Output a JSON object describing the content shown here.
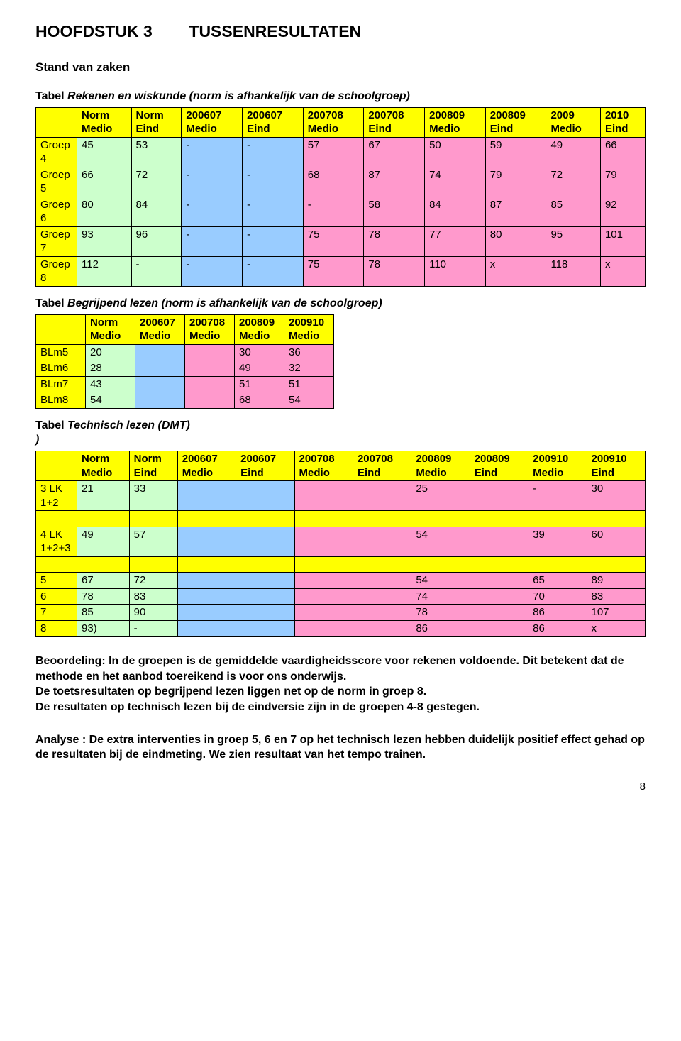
{
  "colors": {
    "header_row_bg": "#ffff00",
    "green_bg": "#ccffcc",
    "blue_bg": "#99ccff",
    "pink_bg": "#ff99cc",
    "border": "#000000",
    "text": "#000000",
    "page_bg": "#ffffff"
  },
  "heading": {
    "chapter": "HOOFDSTUK 3",
    "title": "TUSSENRESULTATEN"
  },
  "subtitle": "Stand van zaken",
  "table1": {
    "title_plain": "Tabel ",
    "title_italic": "Rekenen en wiskunde (norm is afhankelijk van de schoolgroep)",
    "headers": [
      "",
      "Norm Medio",
      "Norm Eind",
      "200607 Medio",
      "200607 Eind",
      "200708 Medio",
      "200708 Eind",
      "200809 Medio",
      "200809 Eind",
      "2009 Medio",
      "2010 Eind"
    ],
    "rows": [
      {
        "label": "Groep 4",
        "cells": [
          "45",
          "53",
          "-",
          "-",
          "57",
          "67",
          "50",
          "59",
          "49",
          "66"
        ]
      },
      {
        "label": "Groep 5",
        "cells": [
          "66",
          "72",
          "-",
          "-",
          "68",
          "87",
          "74",
          "79",
          "72",
          "79"
        ]
      },
      {
        "label": "Groep 6",
        "cells": [
          "80",
          "84",
          "-",
          "-",
          "-",
          "58",
          "84",
          "87",
          "85",
          "92"
        ]
      },
      {
        "label": "Groep 7",
        "cells": [
          " 93",
          "96",
          "-",
          "-",
          "75",
          "78",
          "77",
          "80",
          "95",
          "101"
        ]
      },
      {
        "label": "Groep 8",
        "cells": [
          "112",
          "-",
          "-",
          "-",
          "75",
          "78",
          "110",
          "x",
          "118",
          "x"
        ]
      }
    ],
    "color_classes": [
      "green",
      "green",
      "blue",
      "blue",
      "pink",
      "pink",
      "pink",
      "pink",
      "pink",
      "pink"
    ]
  },
  "table2": {
    "title_plain": "Tabel ",
    "title_italic": "Begrijpend lezen (norm is afhankelijk van de schoolgroep)",
    "headers": [
      "",
      "Norm Medio",
      "200607 Medio",
      "200708 Medio",
      "200809 Medio",
      "200910 Medio"
    ],
    "rows": [
      {
        "label": "BLm5",
        "cells": [
          "20",
          "",
          "",
          "30",
          "36"
        ]
      },
      {
        "label": "BLm6",
        "cells": [
          "28",
          "",
          "",
          "49",
          "32"
        ]
      },
      {
        "label": "BLm7",
        "cells": [
          "43",
          "",
          "",
          "51",
          "51"
        ]
      },
      {
        "label": "BLm8",
        "cells": [
          "54",
          "",
          "",
          "68",
          "54"
        ]
      }
    ],
    "color_classes": [
      "green",
      "blue",
      "pink",
      "pink",
      "pink"
    ]
  },
  "table3": {
    "title_plain": "Tabel ",
    "title_italic": "Technisch lezen (DMT)",
    "title_tail": ")",
    "headers": [
      "",
      "Norm Medio",
      "Norm Eind",
      "200607 Medio",
      "200607 Eind",
      "200708 Medio",
      "200708 Eind",
      "200809 Medio",
      "200809 Eind",
      "200910 Medio",
      "200910 Eind"
    ],
    "rows": [
      {
        "label": "3 LK 1+2",
        "cells": [
          "21",
          "33",
          "",
          "",
          "",
          "",
          "25",
          "",
          "-",
          "30"
        ]
      },
      {
        "label": "",
        "cells": [
          "",
          "",
          "",
          "",
          "",
          "",
          "",
          "",
          "",
          ""
        ],
        "blank": true
      },
      {
        "label": "4 LK 1+2+3",
        "cells": [
          "49",
          "57",
          "",
          "",
          "",
          "",
          "54",
          "",
          "39",
          "60"
        ]
      },
      {
        "label": "",
        "cells": [
          "",
          "",
          "",
          "",
          "",
          "",
          "",
          "",
          "",
          ""
        ],
        "blank": true
      },
      {
        "label": "5",
        "cells": [
          "67",
          "72",
          "",
          "",
          "",
          "",
          "54",
          "",
          "65",
          "89"
        ]
      },
      {
        "label": "6",
        "cells": [
          "78",
          "83",
          "",
          "",
          "",
          "",
          "74",
          "",
          "70",
          "83"
        ]
      },
      {
        "label": "7",
        "cells": [
          "85",
          "90",
          "",
          "",
          "",
          "",
          "78",
          "",
          "86",
          "107"
        ]
      },
      {
        "label": "8",
        "cells": [
          "93)",
          "-",
          "",
          "",
          "",
          "",
          "86",
          "",
          "86",
          "x"
        ]
      }
    ],
    "color_classes": [
      "green",
      "green",
      "blue",
      "blue",
      "pink",
      "pink",
      "pink",
      "pink",
      "pink",
      "pink"
    ]
  },
  "paragraph1": {
    "l1": "Beoordeling: In de groepen is de gemiddelde vaardigheidsscore voor rekenen voldoende. Dit betekent dat de methode en het aanbod toereikend is voor ons onderwijs.",
    "l2": "De toetsresultaten op begrijpend lezen liggen net op de norm in groep 8.",
    "l3": "De resultaten op technisch lezen bij de eindversie zijn in de groepen 4-8   gestegen."
  },
  "paragraph2": "Analyse  : De extra interventies in groep 5, 6 en 7 op het technisch lezen hebben duidelijk positief effect gehad op de resultaten bij de eindmeting.  We zien resultaat van het tempo trainen.",
  "page_number": "8"
}
